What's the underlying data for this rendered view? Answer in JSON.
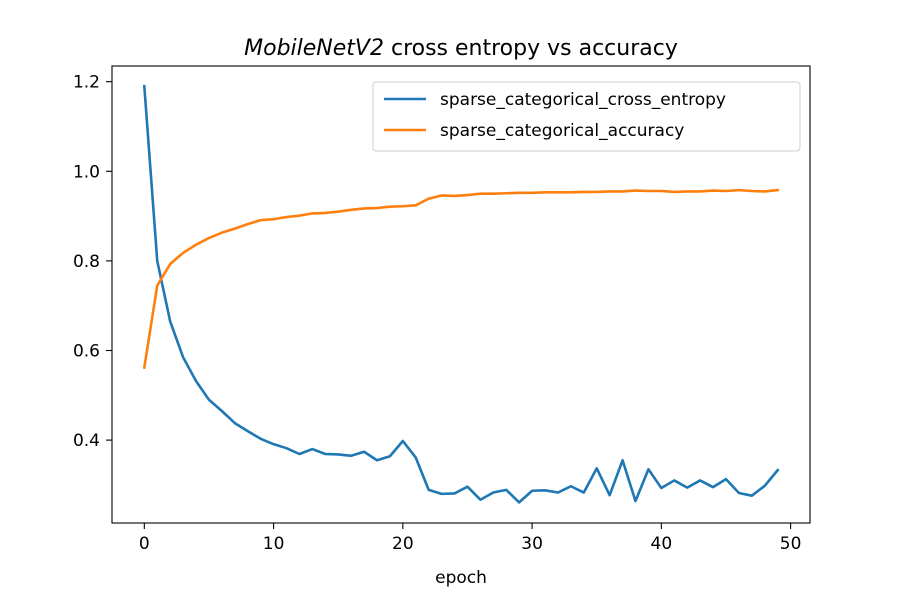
{
  "chart_data": {
    "type": "line",
    "title_italic": "MobileNetV2",
    "title_rest": " cross entropy vs accuracy",
    "xlabel": "epoch",
    "ylabel": "",
    "xlim": [
      -2.5,
      51.5
    ],
    "ylim": [
      0.215,
      1.235
    ],
    "xticks": [
      0,
      10,
      20,
      30,
      40,
      50
    ],
    "yticks": [
      0.4,
      0.6,
      0.8,
      1.0,
      1.2
    ],
    "ytick_labels": [
      "0.4",
      "0.6",
      "0.8",
      "1.0",
      "1.2"
    ],
    "grid": false,
    "legend_position": "top-right",
    "x": [
      0,
      1,
      2,
      3,
      4,
      5,
      6,
      7,
      8,
      9,
      10,
      11,
      12,
      13,
      14,
      15,
      16,
      17,
      18,
      19,
      20,
      21,
      22,
      23,
      24,
      25,
      26,
      27,
      28,
      29,
      30,
      31,
      32,
      33,
      34,
      35,
      36,
      37,
      38,
      39,
      40,
      41,
      42,
      43,
      44,
      45,
      46,
      47,
      48,
      49
    ],
    "series": [
      {
        "name": "sparse_categorical_cross_entropy",
        "color": "#1f77b4",
        "values": [
          1.19,
          0.8,
          0.665,
          0.585,
          0.532,
          0.49,
          0.465,
          0.438,
          0.42,
          0.403,
          0.391,
          0.382,
          0.369,
          0.38,
          0.369,
          0.368,
          0.365,
          0.374,
          0.355,
          0.364,
          0.398,
          0.361,
          0.289,
          0.28,
          0.281,
          0.296,
          0.267,
          0.283,
          0.289,
          0.261,
          0.287,
          0.288,
          0.283,
          0.297,
          0.283,
          0.337,
          0.277,
          0.355,
          0.264,
          0.335,
          0.293,
          0.31,
          0.294,
          0.31,
          0.295,
          0.313,
          0.282,
          0.276,
          0.298,
          0.333
        ]
      },
      {
        "name": "sparse_categorical_accuracy",
        "color": "#ff7f0e",
        "values": [
          0.562,
          0.745,
          0.793,
          0.818,
          0.836,
          0.851,
          0.863,
          0.872,
          0.882,
          0.891,
          0.893,
          0.898,
          0.901,
          0.906,
          0.907,
          0.91,
          0.914,
          0.917,
          0.918,
          0.921,
          0.922,
          0.924,
          0.939,
          0.946,
          0.945,
          0.947,
          0.95,
          0.95,
          0.951,
          0.952,
          0.952,
          0.953,
          0.953,
          0.953,
          0.954,
          0.954,
          0.955,
          0.955,
          0.957,
          0.956,
          0.956,
          0.954,
          0.955,
          0.955,
          0.957,
          0.956,
          0.958,
          0.956,
          0.955,
          0.958
        ]
      }
    ]
  }
}
